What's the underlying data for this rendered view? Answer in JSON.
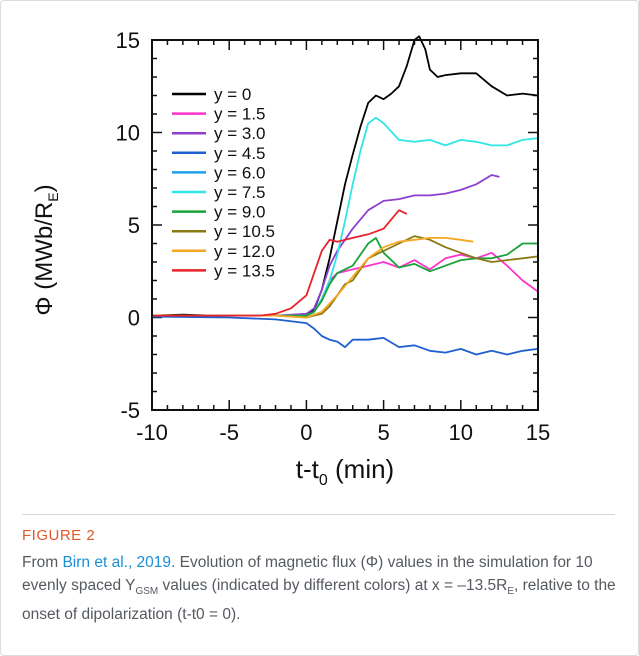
{
  "chart_data": {
    "type": "line",
    "xlabel": "t-t",
    "xlabel_sub": "0",
    "xlabel_unit": " (min)",
    "ylabel_main": "Φ (MWb/R",
    "ylabel_sub": "E",
    "ylabel_close": ")",
    "xlim": [
      -10,
      15
    ],
    "ylim": [
      -5,
      15
    ],
    "xticks": [
      -10,
      -5,
      0,
      5,
      10,
      15
    ],
    "yticks": [
      -5,
      0,
      5,
      10,
      15
    ],
    "grid": false,
    "legend_position": "top-left",
    "series": [
      {
        "name": "y = 0",
        "color": "#000000",
        "points": [
          [
            -10,
            0.1
          ],
          [
            -8,
            0.15
          ],
          [
            -6,
            0.1
          ],
          [
            -4,
            0.1
          ],
          [
            -2,
            0.1
          ],
          [
            -1,
            0.1
          ],
          [
            0,
            0.2
          ],
          [
            0.5,
            0.4
          ],
          [
            1,
            1.5
          ],
          [
            1.5,
            3.2
          ],
          [
            2,
            5.2
          ],
          [
            2.5,
            7.2
          ],
          [
            3,
            8.8
          ],
          [
            3.5,
            10.3
          ],
          [
            4,
            11.6
          ],
          [
            4.5,
            12.0
          ],
          [
            5,
            11.8
          ],
          [
            5.5,
            12.1
          ],
          [
            6,
            12.5
          ],
          [
            6.5,
            13.6
          ],
          [
            7,
            15.0
          ],
          [
            7.3,
            15.2
          ],
          [
            7.7,
            14.5
          ],
          [
            8,
            13.4
          ],
          [
            8.5,
            13.0
          ],
          [
            9,
            13.1
          ],
          [
            10,
            13.2
          ],
          [
            11,
            13.2
          ],
          [
            12,
            12.5
          ],
          [
            13,
            12.0
          ],
          [
            14,
            12.1
          ],
          [
            15,
            12.0
          ]
        ]
      },
      {
        "name": "y = 1.5",
        "color": "#ff33cc",
        "points": [
          [
            -10,
            0.1
          ],
          [
            -6,
            0.1
          ],
          [
            -2,
            0.1
          ],
          [
            0,
            0.1
          ],
          [
            0.5,
            0.3
          ],
          [
            1,
            1.0
          ],
          [
            1.5,
            2.0
          ],
          [
            2,
            2.4
          ],
          [
            3,
            2.6
          ],
          [
            4,
            2.8
          ],
          [
            5,
            3.0
          ],
          [
            6,
            2.7
          ],
          [
            7,
            3.1
          ],
          [
            8,
            2.6
          ],
          [
            9,
            3.2
          ],
          [
            10,
            3.4
          ],
          [
            11,
            3.2
          ],
          [
            12,
            3.5
          ],
          [
            13,
            2.8
          ],
          [
            14,
            2.0
          ],
          [
            15,
            1.4
          ]
        ]
      },
      {
        "name": "y = 3.0",
        "color": "#8e3fd0",
        "points": [
          [
            -10,
            0.1
          ],
          [
            -6,
            0.1
          ],
          [
            -2,
            0.1
          ],
          [
            0,
            0.2
          ],
          [
            0.5,
            0.5
          ],
          [
            1,
            1.5
          ],
          [
            1.5,
            2.8
          ],
          [
            2,
            3.6
          ],
          [
            3,
            4.8
          ],
          [
            4,
            5.8
          ],
          [
            5,
            6.3
          ],
          [
            6,
            6.4
          ],
          [
            7,
            6.6
          ],
          [
            8,
            6.6
          ],
          [
            9,
            6.7
          ],
          [
            10,
            6.9
          ],
          [
            11,
            7.2
          ],
          [
            12,
            7.7
          ],
          [
            12.5,
            7.6
          ]
        ]
      },
      {
        "name": "y = 4.5",
        "color": "#1f5fd1",
        "points": [
          [
            -10,
            0.05
          ],
          [
            -5,
            0.0
          ],
          [
            -2,
            -0.1
          ],
          [
            0,
            -0.3
          ],
          [
            0.5,
            -0.6
          ],
          [
            1,
            -1.0
          ],
          [
            1.5,
            -1.2
          ],
          [
            2,
            -1.3
          ],
          [
            2.5,
            -1.6
          ],
          [
            3,
            -1.2
          ],
          [
            4,
            -1.2
          ],
          [
            5,
            -1.1
          ],
          [
            6,
            -1.6
          ],
          [
            7,
            -1.5
          ],
          [
            8,
            -1.8
          ],
          [
            9,
            -1.9
          ],
          [
            10,
            -1.7
          ],
          [
            11,
            -2.0
          ],
          [
            12,
            -1.8
          ],
          [
            13,
            -2.0
          ],
          [
            14,
            -1.8
          ],
          [
            15,
            -1.7
          ]
        ]
      },
      {
        "name": "y = 6.0",
        "color": "#1ea0ea",
        "points": []
      },
      {
        "name": "y = 7.5",
        "color": "#30e6e6",
        "points": [
          [
            -10,
            0.1
          ],
          [
            -5,
            0.1
          ],
          [
            -2,
            0.1
          ],
          [
            0,
            0.1
          ],
          [
            0.5,
            0.3
          ],
          [
            1,
            1.0
          ],
          [
            1.5,
            2.0
          ],
          [
            2,
            3.4
          ],
          [
            2.5,
            5.2
          ],
          [
            3,
            7.2
          ],
          [
            3.5,
            9.0
          ],
          [
            4,
            10.5
          ],
          [
            4.5,
            10.8
          ],
          [
            5,
            10.5
          ],
          [
            6,
            9.6
          ],
          [
            7,
            9.5
          ],
          [
            8,
            9.6
          ],
          [
            9,
            9.3
          ],
          [
            10,
            9.6
          ],
          [
            11,
            9.5
          ],
          [
            12,
            9.3
          ],
          [
            13,
            9.3
          ],
          [
            14,
            9.6
          ],
          [
            15,
            9.7
          ]
        ]
      },
      {
        "name": "y = 9.0",
        "color": "#19a33a",
        "points": [
          [
            -10,
            0.1
          ],
          [
            -5,
            0.1
          ],
          [
            -2,
            0.1
          ],
          [
            0,
            0.1
          ],
          [
            0.5,
            0.3
          ],
          [
            1,
            0.9
          ],
          [
            1.5,
            1.8
          ],
          [
            2,
            2.4
          ],
          [
            3,
            2.8
          ],
          [
            4,
            4.0
          ],
          [
            4.5,
            4.3
          ],
          [
            5,
            3.5
          ],
          [
            6,
            2.7
          ],
          [
            7,
            2.9
          ],
          [
            8,
            2.5
          ],
          [
            9,
            2.8
          ],
          [
            10,
            3.1
          ],
          [
            11,
            3.2
          ],
          [
            12,
            3.2
          ],
          [
            13,
            3.4
          ],
          [
            14,
            4.0
          ],
          [
            15,
            4.0
          ]
        ]
      },
      {
        "name": "y = 10.5",
        "color": "#8a7a12",
        "points": [
          [
            -10,
            0.1
          ],
          [
            -5,
            0.1
          ],
          [
            -2,
            0.1
          ],
          [
            0,
            0.0
          ],
          [
            1,
            0.2
          ],
          [
            1.5,
            0.6
          ],
          [
            2,
            1.2
          ],
          [
            2.5,
            1.8
          ],
          [
            3,
            2.0
          ],
          [
            3.5,
            2.6
          ],
          [
            4,
            3.2
          ],
          [
            5,
            3.6
          ],
          [
            6,
            4.0
          ],
          [
            7,
            4.4
          ],
          [
            8,
            4.2
          ],
          [
            9,
            3.8
          ],
          [
            10,
            3.5
          ],
          [
            11,
            3.2
          ],
          [
            12,
            3.0
          ],
          [
            13,
            3.1
          ],
          [
            14,
            3.2
          ],
          [
            15,
            3.3
          ]
        ]
      },
      {
        "name": "y = 12.0",
        "color": "#f5a623",
        "points": [
          [
            -10,
            0.1
          ],
          [
            -5,
            0.1
          ],
          [
            -2,
            0.1
          ],
          [
            0,
            0.0
          ],
          [
            1,
            0.3
          ],
          [
            2,
            1.2
          ],
          [
            3,
            2.2
          ],
          [
            4,
            3.2
          ],
          [
            5,
            3.8
          ],
          [
            6,
            4.1
          ],
          [
            7,
            4.2
          ],
          [
            8,
            4.3
          ],
          [
            9,
            4.3
          ],
          [
            10,
            4.2
          ],
          [
            10.8,
            4.1
          ]
        ]
      },
      {
        "name": "y = 13.5",
        "color": "#e8232b",
        "points": [
          [
            -10,
            0.1
          ],
          [
            -5,
            0.1
          ],
          [
            -3,
            0.1
          ],
          [
            -2,
            0.2
          ],
          [
            -1,
            0.5
          ],
          [
            0,
            1.2
          ],
          [
            0.5,
            2.4
          ],
          [
            1,
            3.6
          ],
          [
            1.5,
            4.2
          ],
          [
            2,
            4.1
          ],
          [
            3,
            4.3
          ],
          [
            4,
            4.5
          ],
          [
            5,
            4.8
          ],
          [
            5.5,
            5.3
          ],
          [
            6,
            5.8
          ],
          [
            6.5,
            5.6
          ]
        ]
      }
    ]
  },
  "figure": {
    "label": "FIGURE 2",
    "caption_link": "Birn et al., 2019",
    "caption_pre": "From ",
    "caption_post": ". Evolution of magnetic flux (Φ) values in the simulation for 10 evenly spaced Y",
    "caption_sub_gsm": "GSM",
    "caption_post2": " values (indicated by different colors) at x = –13.5R",
    "caption_sub_e": "E",
    "caption_post3": ", relative to the onset of dipolarization (t-t0 = 0)."
  }
}
